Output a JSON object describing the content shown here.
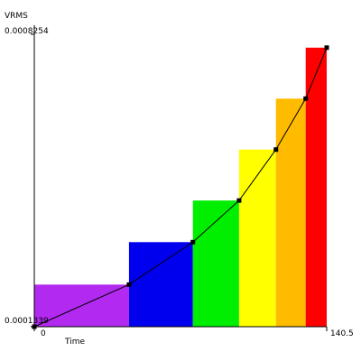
{
  "chart_data": {
    "type": "bar",
    "ylabel": "VRMS",
    "xlabel": "Time",
    "y_max_label": "0.0008254",
    "y_min_label": "0.0001339",
    "x_min_label": "0",
    "x_max_label": "140.5",
    "xlim": [
      0,
      140.5
    ],
    "ylim": [
      0.0001339,
      0.0008254
    ],
    "grid": false,
    "legend": "none",
    "bars": [
      {
        "x0": 0,
        "x1": 45.5,
        "value": 0.0002335,
        "color": "#b229f0"
      },
      {
        "x0": 45.5,
        "x1": 76.2,
        "value": 0.0003339,
        "color": "#0000ee"
      },
      {
        "x0": 76.2,
        "x1": 98.4,
        "value": 0.0004323,
        "color": "#00ee00"
      },
      {
        "x0": 98.4,
        "x1": 116.1,
        "value": 0.0005528,
        "color": "#ffff00"
      },
      {
        "x0": 116.1,
        "x1": 130.4,
        "value": 0.0006733,
        "color": "#ffbb00"
      },
      {
        "x0": 130.4,
        "x1": 140.5,
        "value": 0.0007938,
        "color": "#ff0000"
      }
    ],
    "line": {
      "x": [
        0,
        45.5,
        76.2,
        98.4,
        116.1,
        130.4,
        140.5
      ],
      "y": [
        0.0001339,
        0.0002335,
        0.0003339,
        0.0004323,
        0.0005528,
        0.0006733,
        0.0007938
      ],
      "color": "#000000"
    }
  }
}
